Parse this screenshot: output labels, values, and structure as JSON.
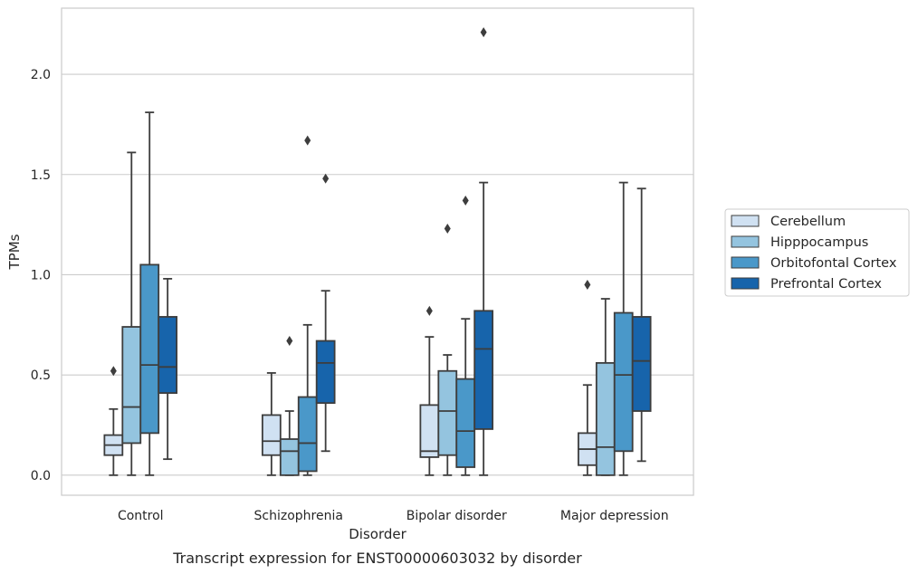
{
  "chart_data": {
    "type": "box",
    "caption": "Transcript expression for ENST00000603032 by disorder",
    "xlabel": "Disorder",
    "ylabel": "TPMs",
    "ylim": [
      -0.1,
      2.33
    ],
    "yticks": [
      0.0,
      0.5,
      1.0,
      1.5,
      2.0
    ],
    "ytick_labels": [
      "0.0",
      "0.5",
      "1.0",
      "1.5",
      "2.0"
    ],
    "grid": "horizontal",
    "legend_position": "right",
    "categories": [
      "Control",
      "Schizophrenia",
      "Bipolar disorder",
      "Major depression"
    ],
    "series": [
      {
        "name": "Cerebellum",
        "color": "#d0e1f2",
        "boxes": [
          {
            "whislo": 0.0,
            "q1": 0.1,
            "med": 0.15,
            "q3": 0.2,
            "whishi": 0.33,
            "fliers": [
              0.52
            ]
          },
          {
            "whislo": 0.0,
            "q1": 0.1,
            "med": 0.17,
            "q3": 0.3,
            "whishi": 0.51,
            "fliers": []
          },
          {
            "whislo": 0.0,
            "q1": 0.09,
            "med": 0.12,
            "q3": 0.35,
            "whishi": 0.69,
            "fliers": [
              0.82
            ]
          },
          {
            "whislo": 0.0,
            "q1": 0.05,
            "med": 0.13,
            "q3": 0.21,
            "whishi": 0.45,
            "fliers": [
              0.95
            ]
          }
        ]
      },
      {
        "name": "Hipppocampus",
        "color": "#94c4df",
        "boxes": [
          {
            "whislo": 0.0,
            "q1": 0.16,
            "med": 0.34,
            "q3": 0.74,
            "whishi": 1.61,
            "fliers": []
          },
          {
            "whislo": 0.0,
            "q1": 0.0,
            "med": 0.12,
            "q3": 0.18,
            "whishi": 0.32,
            "fliers": [
              0.67
            ]
          },
          {
            "whislo": 0.0,
            "q1": 0.1,
            "med": 0.32,
            "q3": 0.52,
            "whishi": 0.6,
            "fliers": [
              1.23
            ]
          },
          {
            "whislo": 0.0,
            "q1": 0.0,
            "med": 0.14,
            "q3": 0.56,
            "whishi": 0.88,
            "fliers": []
          }
        ]
      },
      {
        "name": "Orbitofontal Cortex",
        "color": "#4a98c9",
        "boxes": [
          {
            "whislo": 0.0,
            "q1": 0.21,
            "med": 0.55,
            "q3": 1.05,
            "whishi": 1.81,
            "fliers": []
          },
          {
            "whislo": 0.0,
            "q1": 0.02,
            "med": 0.16,
            "q3": 0.39,
            "whishi": 0.75,
            "fliers": [
              1.67
            ]
          },
          {
            "whislo": 0.0,
            "q1": 0.04,
            "med": 0.22,
            "q3": 0.48,
            "whishi": 0.78,
            "fliers": [
              1.37
            ]
          },
          {
            "whislo": 0.0,
            "q1": 0.12,
            "med": 0.5,
            "q3": 0.81,
            "whishi": 1.46,
            "fliers": []
          }
        ]
      },
      {
        "name": "Prefrontal Cortex",
        "color": "#1764ab",
        "boxes": [
          {
            "whislo": 0.08,
            "q1": 0.41,
            "med": 0.54,
            "q3": 0.79,
            "whishi": 0.98,
            "fliers": []
          },
          {
            "whislo": 0.12,
            "q1": 0.36,
            "med": 0.56,
            "q3": 0.67,
            "whishi": 0.92,
            "fliers": [
              1.48
            ]
          },
          {
            "whislo": 0.0,
            "q1": 0.23,
            "med": 0.63,
            "q3": 0.82,
            "whishi": 1.46,
            "fliers": [
              2.21
            ]
          },
          {
            "whislo": 0.07,
            "q1": 0.32,
            "med": 0.57,
            "q3": 0.79,
            "whishi": 1.43,
            "fliers": []
          }
        ]
      }
    ]
  }
}
